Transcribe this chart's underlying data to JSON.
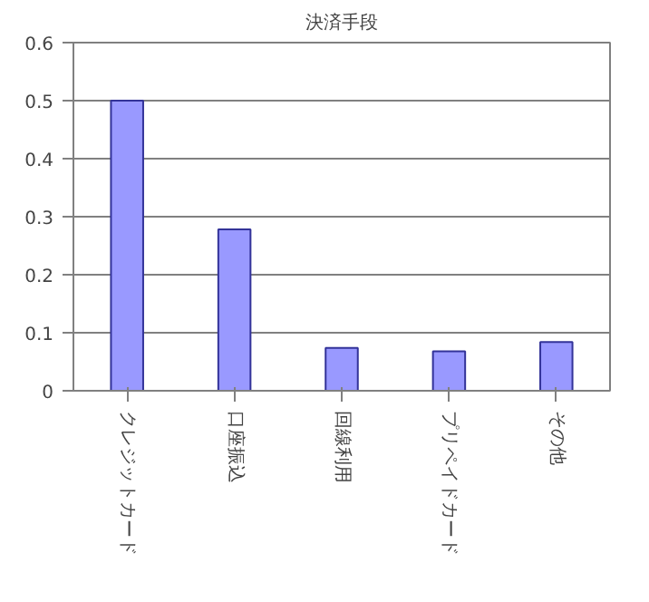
{
  "chart_data": {
    "type": "bar",
    "title": "決済手段",
    "categories": [
      "クレジットカード",
      "口座振込",
      "回線利用",
      "プリペイドカード",
      "その他"
    ],
    "values": [
      0.5,
      0.278,
      0.074,
      0.068,
      0.084
    ],
    "color": "#9999ff",
    "ylim": [
      0,
      0.6
    ],
    "yticks": [
      0,
      0.1,
      0.2,
      0.3,
      0.4,
      0.5,
      0.6
    ],
    "grid": "y"
  }
}
